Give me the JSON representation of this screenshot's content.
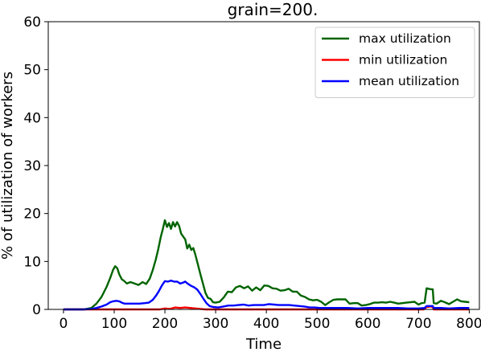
{
  "chart_data": {
    "type": "line",
    "title": "grain=200.",
    "xlabel": "Time",
    "ylabel": "% of utilization of workers",
    "xlim": [
      -30,
      820
    ],
    "ylim": [
      0,
      60
    ],
    "x_ticks": [
      0,
      100,
      200,
      300,
      400,
      500,
      600,
      700,
      800
    ],
    "y_ticks": [
      0,
      10,
      20,
      30,
      40,
      50,
      60
    ],
    "grid": false,
    "legend_position": "top-right",
    "series": [
      {
        "name": "max utilization",
        "color": "#006400",
        "points": [
          [
            0,
            0.0
          ],
          [
            20,
            0.0
          ],
          [
            40,
            0.0
          ],
          [
            55,
            0.3
          ],
          [
            65,
            1.2
          ],
          [
            75,
            2.6
          ],
          [
            85,
            4.7
          ],
          [
            92,
            6.5
          ],
          [
            98,
            8.3
          ],
          [
            102,
            9.0
          ],
          [
            106,
            8.6
          ],
          [
            110,
            7.3
          ],
          [
            115,
            6.3
          ],
          [
            120,
            5.9
          ],
          [
            125,
            5.4
          ],
          [
            132,
            5.7
          ],
          [
            140,
            5.4
          ],
          [
            148,
            5.1
          ],
          [
            156,
            5.7
          ],
          [
            163,
            5.3
          ],
          [
            170,
            6.4
          ],
          [
            176,
            8.2
          ],
          [
            182,
            10.4
          ],
          [
            187,
            12.6
          ],
          [
            192,
            15.2
          ],
          [
            196,
            16.8
          ],
          [
            200,
            18.6
          ],
          [
            204,
            17.2
          ],
          [
            208,
            18.0
          ],
          [
            212,
            16.8
          ],
          [
            216,
            18.2
          ],
          [
            220,
            17.3
          ],
          [
            224,
            18.2
          ],
          [
            228,
            17.4
          ],
          [
            232,
            15.8
          ],
          [
            236,
            15.2
          ],
          [
            240,
            14.6
          ],
          [
            244,
            12.7
          ],
          [
            248,
            13.5
          ],
          [
            252,
            12.4
          ],
          [
            256,
            12.8
          ],
          [
            260,
            11.4
          ],
          [
            265,
            9.4
          ],
          [
            270,
            7.3
          ],
          [
            275,
            5.4
          ],
          [
            280,
            3.4
          ],
          [
            285,
            2.4
          ],
          [
            290,
            2.2
          ],
          [
            295,
            1.5
          ],
          [
            300,
            1.4
          ],
          [
            308,
            1.6
          ],
          [
            316,
            2.5
          ],
          [
            324,
            3.7
          ],
          [
            332,
            3.6
          ],
          [
            340,
            4.6
          ],
          [
            348,
            4.9
          ],
          [
            356,
            4.4
          ],
          [
            364,
            4.8
          ],
          [
            372,
            3.9
          ],
          [
            380,
            4.6
          ],
          [
            388,
            4.0
          ],
          [
            396,
            5.0
          ],
          [
            404,
            4.9
          ],
          [
            412,
            4.4
          ],
          [
            420,
            4.3
          ],
          [
            428,
            3.9
          ],
          [
            436,
            4.0
          ],
          [
            444,
            4.3
          ],
          [
            452,
            3.7
          ],
          [
            460,
            3.7
          ],
          [
            468,
            2.9
          ],
          [
            476,
            2.6
          ],
          [
            484,
            2.1
          ],
          [
            492,
            1.9
          ],
          [
            500,
            2.0
          ],
          [
            508,
            1.6
          ],
          [
            516,
            0.9
          ],
          [
            524,
            1.5
          ],
          [
            532,
            2.0
          ],
          [
            540,
            2.1
          ],
          [
            548,
            2.1
          ],
          [
            556,
            2.1
          ],
          [
            564,
            1.2
          ],
          [
            572,
            1.3
          ],
          [
            580,
            1.3
          ],
          [
            588,
            0.8
          ],
          [
            596,
            0.9
          ],
          [
            604,
            1.1
          ],
          [
            612,
            1.4
          ],
          [
            620,
            1.4
          ],
          [
            628,
            1.5
          ],
          [
            636,
            1.4
          ],
          [
            644,
            1.6
          ],
          [
            652,
            1.4
          ],
          [
            660,
            1.2
          ],
          [
            668,
            1.3
          ],
          [
            676,
            1.4
          ],
          [
            684,
            1.5
          ],
          [
            692,
            1.6
          ],
          [
            700,
            1.0
          ],
          [
            706,
            1.3
          ],
          [
            712,
            1.4
          ],
          [
            716,
            4.4
          ],
          [
            720,
            4.3
          ],
          [
            724,
            4.2
          ],
          [
            728,
            4.2
          ],
          [
            730,
            1.3
          ],
          [
            736,
            1.2
          ],
          [
            744,
            1.8
          ],
          [
            752,
            1.5
          ],
          [
            760,
            1.1
          ],
          [
            768,
            1.6
          ],
          [
            776,
            2.1
          ],
          [
            784,
            1.7
          ],
          [
            792,
            1.6
          ],
          [
            800,
            1.5
          ]
        ]
      },
      {
        "name": "min utilization",
        "color": "#ff0000",
        "points": [
          [
            0,
            0.0
          ],
          [
            190,
            0.0
          ],
          [
            200,
            0.2
          ],
          [
            210,
            0.1
          ],
          [
            220,
            0.4
          ],
          [
            230,
            0.3
          ],
          [
            240,
            0.4
          ],
          [
            250,
            0.3
          ],
          [
            260,
            0.2
          ],
          [
            270,
            0.1
          ],
          [
            280,
            0.0
          ],
          [
            710,
            0.0
          ],
          [
            716,
            0.5
          ],
          [
            724,
            0.6
          ],
          [
            728,
            0.5
          ],
          [
            730,
            0.0
          ],
          [
            800,
            0.0
          ]
        ]
      },
      {
        "name": "mean utilization",
        "color": "#0000ff",
        "points": [
          [
            0,
            0.0
          ],
          [
            40,
            0.0
          ],
          [
            55,
            0.1
          ],
          [
            65,
            0.3
          ],
          [
            75,
            0.6
          ],
          [
            85,
            1.0
          ],
          [
            92,
            1.5
          ],
          [
            98,
            1.7
          ],
          [
            104,
            1.8
          ],
          [
            110,
            1.7
          ],
          [
            115,
            1.4
          ],
          [
            120,
            1.2
          ],
          [
            130,
            1.2
          ],
          [
            140,
            1.2
          ],
          [
            150,
            1.2
          ],
          [
            160,
            1.3
          ],
          [
            168,
            1.4
          ],
          [
            176,
            2.0
          ],
          [
            182,
            2.8
          ],
          [
            188,
            3.8
          ],
          [
            194,
            5.0
          ],
          [
            200,
            5.9
          ],
          [
            206,
            5.8
          ],
          [
            212,
            6.0
          ],
          [
            218,
            5.8
          ],
          [
            224,
            5.8
          ],
          [
            230,
            5.4
          ],
          [
            236,
            5.6
          ],
          [
            240,
            5.8
          ],
          [
            246,
            5.3
          ],
          [
            252,
            4.9
          ],
          [
            258,
            4.6
          ],
          [
            264,
            4.1
          ],
          [
            270,
            3.2
          ],
          [
            276,
            2.2
          ],
          [
            282,
            1.3
          ],
          [
            288,
            0.7
          ],
          [
            295,
            0.5
          ],
          [
            305,
            0.4
          ],
          [
            315,
            0.6
          ],
          [
            325,
            0.8
          ],
          [
            335,
            0.8
          ],
          [
            345,
            0.9
          ],
          [
            355,
            1.0
          ],
          [
            365,
            0.8
          ],
          [
            375,
            0.9
          ],
          [
            385,
            0.9
          ],
          [
            395,
            0.9
          ],
          [
            405,
            1.1
          ],
          [
            415,
            1.0
          ],
          [
            425,
            0.9
          ],
          [
            435,
            0.9
          ],
          [
            445,
            0.9
          ],
          [
            455,
            0.8
          ],
          [
            465,
            0.7
          ],
          [
            475,
            0.6
          ],
          [
            485,
            0.4
          ],
          [
            495,
            0.4
          ],
          [
            505,
            0.3
          ],
          [
            520,
            0.3
          ],
          [
            540,
            0.3
          ],
          [
            560,
            0.3
          ],
          [
            580,
            0.2
          ],
          [
            600,
            0.3
          ],
          [
            620,
            0.3
          ],
          [
            640,
            0.3
          ],
          [
            660,
            0.3
          ],
          [
            680,
            0.2
          ],
          [
            700,
            0.2
          ],
          [
            712,
            0.3
          ],
          [
            716,
            0.7
          ],
          [
            724,
            0.7
          ],
          [
            728,
            0.7
          ],
          [
            730,
            0.3
          ],
          [
            744,
            0.3
          ],
          [
            760,
            0.2
          ],
          [
            780,
            0.3
          ],
          [
            800,
            0.3
          ]
        ]
      }
    ]
  }
}
